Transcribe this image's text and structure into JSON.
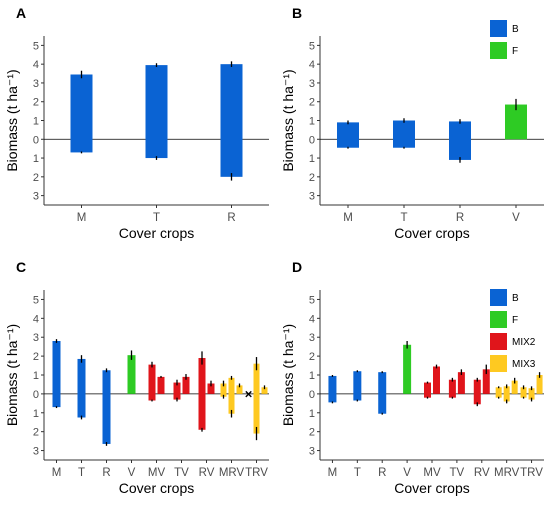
{
  "figure": {
    "colors": {
      "B": "#0a63d3",
      "F": "#2ecb24",
      "MIX2": "#e0151b",
      "MIX3": "#fec921",
      "axis": "#333333",
      "zero_line": "#000000"
    }
  },
  "chart_data": [
    {
      "panel_label": "A",
      "type": "bar",
      "xlabel": "Cover crops",
      "ylabel": "Biomass (t ha⁻¹)",
      "ylim": [
        -3.5,
        5.5
      ],
      "yticks": [
        5,
        4,
        3,
        2,
        1,
        0,
        -1,
        -2,
        -3
      ],
      "ytick_labels": [
        "5",
        "4",
        "3",
        "2",
        "1",
        "0",
        "1",
        "2",
        "3"
      ],
      "categories": [
        "M",
        "T",
        "R"
      ],
      "legend": [],
      "bars": [
        {
          "cat": "M",
          "group": "B",
          "above": 3.45,
          "above_err": 0.2,
          "below": -0.7,
          "below_err": 0.05
        },
        {
          "cat": "T",
          "group": "B",
          "above": 3.95,
          "above_err": 0.1,
          "below": -1.0,
          "below_err": 0.1
        },
        {
          "cat": "R",
          "group": "B",
          "above": 4.0,
          "above_err": 0.15,
          "below": -2.0,
          "below_err": 0.2
        }
      ],
      "markers": []
    },
    {
      "panel_label": "B",
      "type": "bar",
      "xlabel": "Cover crops",
      "ylabel": "Biomass (t ha⁻¹)",
      "ylim": [
        -3.5,
        5.5
      ],
      "yticks": [
        5,
        4,
        3,
        2,
        1,
        0,
        -1,
        -2,
        -3
      ],
      "ytick_labels": [
        "5",
        "4",
        "3",
        "2",
        "1",
        "0",
        "1",
        "2",
        "3"
      ],
      "categories": [
        "M",
        "T",
        "R",
        "V"
      ],
      "legend": [
        {
          "name": "B",
          "group": "B"
        },
        {
          "name": "F",
          "group": "F"
        }
      ],
      "bars": [
        {
          "cat": "M",
          "group": "B",
          "above": 0.9,
          "above_err": 0.1,
          "below": -0.45,
          "below_err": 0.05
        },
        {
          "cat": "T",
          "group": "B",
          "above": 1.0,
          "above_err": 0.12,
          "below": -0.45,
          "below_err": 0.05
        },
        {
          "cat": "R",
          "group": "B",
          "above": 0.95,
          "above_err": 0.12,
          "below": -1.1,
          "below_err": 0.15
        },
        {
          "cat": "V",
          "group": "F",
          "above": 1.85,
          "above_err": 0.3,
          "below": 0,
          "below_err": 0
        }
      ],
      "markers": []
    },
    {
      "panel_label": "C",
      "type": "bar",
      "xlabel": "Cover crops",
      "ylabel": "Biomass (t ha⁻¹)",
      "ylim": [
        -3.5,
        5.5
      ],
      "yticks": [
        5,
        4,
        3,
        2,
        1,
        0,
        -1,
        -2,
        -3
      ],
      "ytick_labels": [
        "5",
        "4",
        "3",
        "2",
        "1",
        "0",
        "1",
        "2",
        "3"
      ],
      "categories": [
        "M",
        "T",
        "R",
        "V",
        "MV",
        "TV",
        "RV",
        "MRV",
        "TRV"
      ],
      "legend": [],
      "bars": [
        {
          "cat": "M",
          "slot": 0,
          "n": 1,
          "group": "B",
          "above": 2.8,
          "above_err": 0.1,
          "below": -0.7,
          "below_err": 0.05
        },
        {
          "cat": "T",
          "slot": 0,
          "n": 1,
          "group": "B",
          "above": 1.85,
          "above_err": 0.2,
          "below": -1.25,
          "below_err": 0.1
        },
        {
          "cat": "R",
          "slot": 0,
          "n": 1,
          "group": "B",
          "above": 1.25,
          "above_err": 0.1,
          "below": -2.65,
          "below_err": 0.1
        },
        {
          "cat": "V",
          "slot": 0,
          "n": 1,
          "group": "F",
          "above": 2.05,
          "above_err": 0.25,
          "below": 0,
          "below_err": 0
        },
        {
          "cat": "MV",
          "slot": 0,
          "n": 2,
          "group": "MIX2",
          "above": 1.55,
          "above_err": 0.15,
          "below": -0.35,
          "below_err": 0.05
        },
        {
          "cat": "MV",
          "slot": 1,
          "n": 2,
          "group": "MIX2",
          "above": 0.9,
          "above_err": 0.05,
          "below": 0,
          "below_err": 0
        },
        {
          "cat": "TV",
          "slot": 0,
          "n": 2,
          "group": "MIX2",
          "above": 0.6,
          "above_err": 0.15,
          "below": -0.3,
          "below_err": 0.1
        },
        {
          "cat": "TV",
          "slot": 1,
          "n": 2,
          "group": "MIX2",
          "above": 0.9,
          "above_err": 0.15,
          "below": 0,
          "below_err": 0
        },
        {
          "cat": "RV",
          "slot": 0,
          "n": 2,
          "group": "MIX2",
          "above": 1.9,
          "above_err": 0.35,
          "below": -1.9,
          "below_err": 0.1
        },
        {
          "cat": "RV",
          "slot": 1,
          "n": 2,
          "group": "MIX2",
          "above": 0.55,
          "above_err": 0.15,
          "below": 0,
          "below_err": 0
        },
        {
          "cat": "MRV",
          "slot": 0,
          "n": 3,
          "group": "MIX3",
          "above": 0.55,
          "above_err": 0.15,
          "below": -0.15,
          "below_err": 0.1
        },
        {
          "cat": "MRV",
          "slot": 1,
          "n": 3,
          "group": "MIX3",
          "above": 0.85,
          "above_err": 0.1,
          "below": -1.05,
          "below_err": 0.2
        },
        {
          "cat": "MRV",
          "slot": 2,
          "n": 3,
          "group": "MIX3",
          "above": 0.45,
          "above_err": 0.1,
          "below": 0,
          "below_err": 0
        },
        {
          "cat": "TRV",
          "slot": 1,
          "n": 3,
          "group": "MIX3",
          "above": 1.6,
          "above_err": 0.35,
          "below": -2.1,
          "below_err": 0.35
        },
        {
          "cat": "TRV",
          "slot": 2,
          "n": 3,
          "group": "MIX3",
          "above": 0.35,
          "above_err": 0.1,
          "below": 0,
          "below_err": 0
        }
      ],
      "markers": [
        {
          "cat": "TRV",
          "slot": 0,
          "n": 3,
          "symbol": "×",
          "value": 0
        }
      ]
    },
    {
      "panel_label": "D",
      "type": "bar",
      "xlabel": "Cover crops",
      "ylabel": "Biomass (t ha⁻¹)",
      "ylim": [
        -3.5,
        5.5
      ],
      "yticks": [
        5,
        4,
        3,
        2,
        1,
        0,
        -1,
        -2,
        -3
      ],
      "ytick_labels": [
        "5",
        "4",
        "3",
        "2",
        "1",
        "0",
        "1",
        "2",
        "3"
      ],
      "categories": [
        "M",
        "T",
        "R",
        "V",
        "MV",
        "TV",
        "RV",
        "MRV",
        "TRV"
      ],
      "legend": [
        {
          "name": "B",
          "group": "B"
        },
        {
          "name": "F",
          "group": "F"
        },
        {
          "name": "MIX2",
          "group": "MIX2"
        },
        {
          "name": "MIX3",
          "group": "MIX3"
        }
      ],
      "bars": [
        {
          "cat": "M",
          "slot": 0,
          "n": 1,
          "group": "B",
          "above": 0.95,
          "above_err": 0.05,
          "below": -0.45,
          "below_err": 0.05
        },
        {
          "cat": "T",
          "slot": 0,
          "n": 1,
          "group": "B",
          "above": 1.2,
          "above_err": 0.05,
          "below": -0.35,
          "below_err": 0.05
        },
        {
          "cat": "R",
          "slot": 0,
          "n": 1,
          "group": "B",
          "above": 1.15,
          "above_err": 0.05,
          "below": -1.05,
          "below_err": 0.05
        },
        {
          "cat": "V",
          "slot": 0,
          "n": 1,
          "group": "F",
          "above": 2.6,
          "above_err": 0.2,
          "below": 0,
          "below_err": 0
        },
        {
          "cat": "MV",
          "slot": 0,
          "n": 2,
          "group": "MIX2",
          "above": 0.6,
          "above_err": 0.05,
          "below": -0.2,
          "below_err": 0.05
        },
        {
          "cat": "MV",
          "slot": 1,
          "n": 2,
          "group": "MIX2",
          "above": 1.45,
          "above_err": 0.1,
          "below": 0,
          "below_err": 0
        },
        {
          "cat": "TV",
          "slot": 0,
          "n": 2,
          "group": "MIX2",
          "above": 0.75,
          "above_err": 0.1,
          "below": -0.2,
          "below_err": 0.05
        },
        {
          "cat": "TV",
          "slot": 1,
          "n": 2,
          "group": "MIX2",
          "above": 1.15,
          "above_err": 0.15,
          "below": 0,
          "below_err": 0
        },
        {
          "cat": "RV",
          "slot": 0,
          "n": 2,
          "group": "MIX2",
          "above": 0.75,
          "above_err": 0.1,
          "below": -0.55,
          "below_err": 0.1
        },
        {
          "cat": "RV",
          "slot": 1,
          "n": 2,
          "group": "MIX2",
          "above": 1.3,
          "above_err": 0.25,
          "below": 0,
          "below_err": 0
        },
        {
          "cat": "MRV",
          "slot": 0,
          "n": 3,
          "group": "MIX3",
          "above": 0.35,
          "above_err": 0.05,
          "below": -0.2,
          "below_err": 0.05
        },
        {
          "cat": "MRV",
          "slot": 1,
          "n": 3,
          "group": "MIX3",
          "above": 0.4,
          "above_err": 0.1,
          "below": -0.4,
          "below_err": 0.1
        },
        {
          "cat": "MRV",
          "slot": 2,
          "n": 3,
          "group": "MIX3",
          "above": 0.7,
          "above_err": 0.15,
          "below": 0,
          "below_err": 0
        },
        {
          "cat": "TRV",
          "slot": 0,
          "n": 3,
          "group": "MIX3",
          "above": 0.35,
          "above_err": 0.1,
          "below": -0.2,
          "below_err": 0.05
        },
        {
          "cat": "TRV",
          "slot": 1,
          "n": 3,
          "group": "MIX3",
          "above": 0.3,
          "above_err": 0.1,
          "below": -0.3,
          "below_err": 0.1
        },
        {
          "cat": "TRV",
          "slot": 2,
          "n": 3,
          "group": "MIX3",
          "above": 1.0,
          "above_err": 0.15,
          "below": 0,
          "below_err": 0
        }
      ],
      "markers": []
    }
  ]
}
